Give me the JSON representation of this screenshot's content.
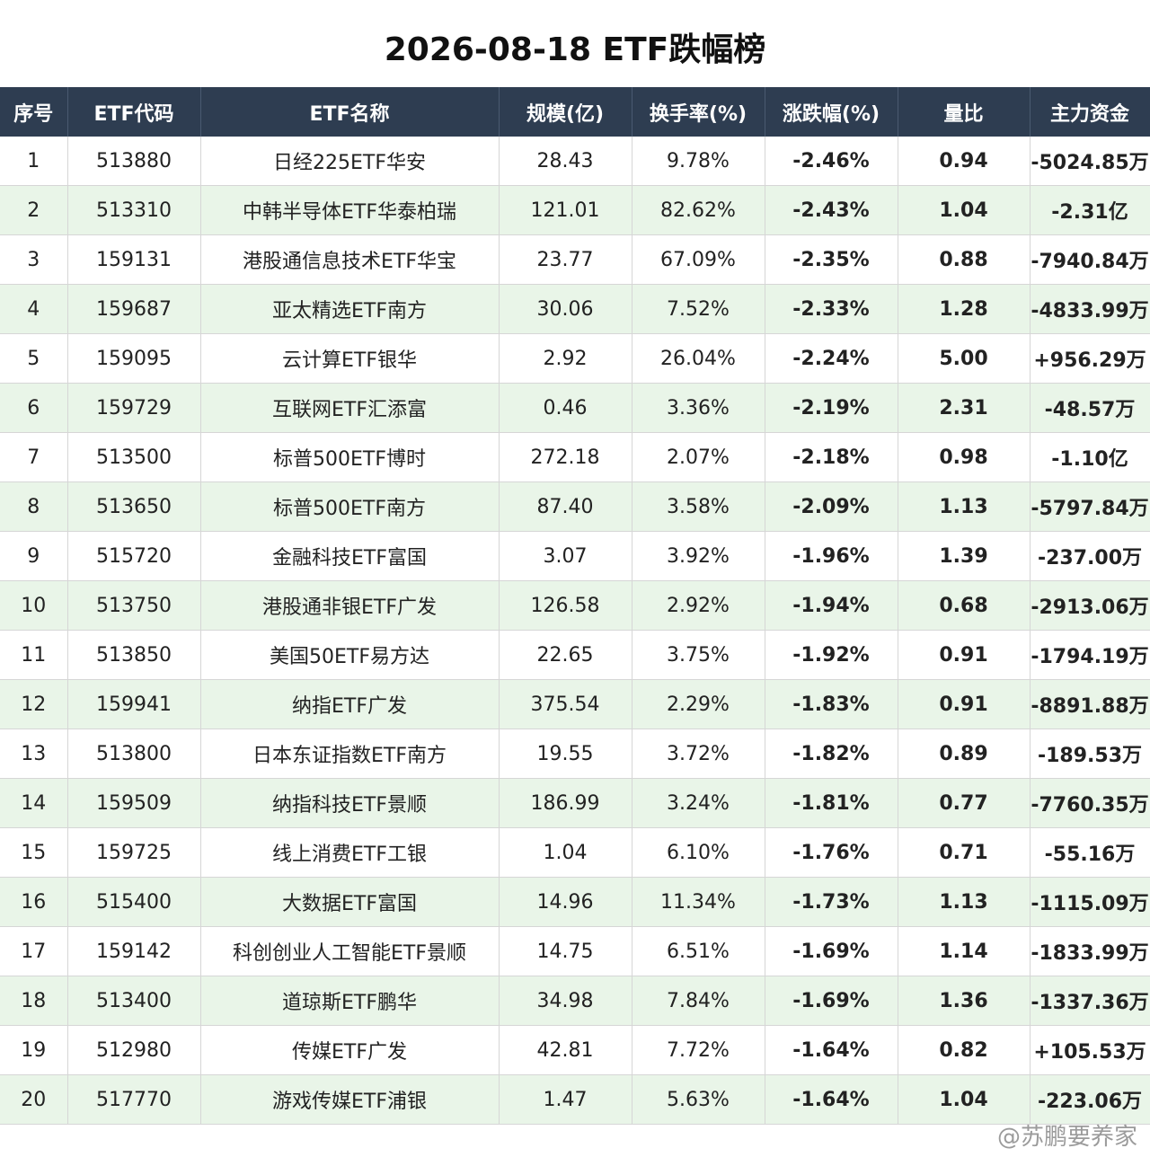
{
  "title": "2026-08-18 ETF跌幅榜",
  "headers": [
    "序号",
    "ETF代码",
    "ETF名称",
    "规模(亿)",
    "换手率(%)",
    "涨跌幅(%)",
    "量比",
    "主力资金"
  ],
  "colors": {
    "header_bg": "#2e3d51",
    "stripe_bg": "#e9f5e8",
    "negative": "#27a04a",
    "positive": "#e04040"
  },
  "rows": [
    {
      "idx": "1",
      "code": "513880",
      "name": "日经225ETF华安",
      "scale": "28.43",
      "turnover": "9.78%",
      "change": "-2.46%",
      "vol_ratio": "0.94",
      "vr_dir": "neg",
      "fund": "-5024.85万",
      "fund_dir": "neg"
    },
    {
      "idx": "2",
      "code": "513310",
      "name": "中韩半导体ETF华泰柏瑞",
      "scale": "121.01",
      "turnover": "82.62%",
      "change": "-2.43%",
      "vol_ratio": "1.04",
      "vr_dir": "pos",
      "fund": "-2.31亿",
      "fund_dir": "neg"
    },
    {
      "idx": "3",
      "code": "159131",
      "name": "港股通信息技术ETF华宝",
      "scale": "23.77",
      "turnover": "67.09%",
      "change": "-2.35%",
      "vol_ratio": "0.88",
      "vr_dir": "neg",
      "fund": "-7940.84万",
      "fund_dir": "neg"
    },
    {
      "idx": "4",
      "code": "159687",
      "name": "亚太精选ETF南方",
      "scale": "30.06",
      "turnover": "7.52%",
      "change": "-2.33%",
      "vol_ratio": "1.28",
      "vr_dir": "pos",
      "fund": "-4833.99万",
      "fund_dir": "neg"
    },
    {
      "idx": "5",
      "code": "159095",
      "name": "云计算ETF银华",
      "scale": "2.92",
      "turnover": "26.04%",
      "change": "-2.24%",
      "vol_ratio": "5.00",
      "vr_dir": "pos",
      "fund": "+956.29万",
      "fund_dir": "pos"
    },
    {
      "idx": "6",
      "code": "159729",
      "name": "互联网ETF汇添富",
      "scale": "0.46",
      "turnover": "3.36%",
      "change": "-2.19%",
      "vol_ratio": "2.31",
      "vr_dir": "pos",
      "fund": "-48.57万",
      "fund_dir": "neg"
    },
    {
      "idx": "7",
      "code": "513500",
      "name": "标普500ETF博时",
      "scale": "272.18",
      "turnover": "2.07%",
      "change": "-2.18%",
      "vol_ratio": "0.98",
      "vr_dir": "neg",
      "fund": "-1.10亿",
      "fund_dir": "neg"
    },
    {
      "idx": "8",
      "code": "513650",
      "name": "标普500ETF南方",
      "scale": "87.40",
      "turnover": "3.58%",
      "change": "-2.09%",
      "vol_ratio": "1.13",
      "vr_dir": "pos",
      "fund": "-5797.84万",
      "fund_dir": "neg"
    },
    {
      "idx": "9",
      "code": "515720",
      "name": "金融科技ETF富国",
      "scale": "3.07",
      "turnover": "3.92%",
      "change": "-1.96%",
      "vol_ratio": "1.39",
      "vr_dir": "pos",
      "fund": "-237.00万",
      "fund_dir": "neg"
    },
    {
      "idx": "10",
      "code": "513750",
      "name": "港股通非银ETF广发",
      "scale": "126.58",
      "turnover": "2.92%",
      "change": "-1.94%",
      "vol_ratio": "0.68",
      "vr_dir": "neg",
      "fund": "-2913.06万",
      "fund_dir": "neg"
    },
    {
      "idx": "11",
      "code": "513850",
      "name": "美国50ETF易方达",
      "scale": "22.65",
      "turnover": "3.75%",
      "change": "-1.92%",
      "vol_ratio": "0.91",
      "vr_dir": "neg",
      "fund": "-1794.19万",
      "fund_dir": "neg"
    },
    {
      "idx": "12",
      "code": "159941",
      "name": "纳指ETF广发",
      "scale": "375.54",
      "turnover": "2.29%",
      "change": "-1.83%",
      "vol_ratio": "0.91",
      "vr_dir": "neg",
      "fund": "-8891.88万",
      "fund_dir": "neg"
    },
    {
      "idx": "13",
      "code": "513800",
      "name": "日本东证指数ETF南方",
      "scale": "19.55",
      "turnover": "3.72%",
      "change": "-1.82%",
      "vol_ratio": "0.89",
      "vr_dir": "neg",
      "fund": "-189.53万",
      "fund_dir": "neg"
    },
    {
      "idx": "14",
      "code": "159509",
      "name": "纳指科技ETF景顺",
      "scale": "186.99",
      "turnover": "3.24%",
      "change": "-1.81%",
      "vol_ratio": "0.77",
      "vr_dir": "neg",
      "fund": "-7760.35万",
      "fund_dir": "neg"
    },
    {
      "idx": "15",
      "code": "159725",
      "name": "线上消费ETF工银",
      "scale": "1.04",
      "turnover": "6.10%",
      "change": "-1.76%",
      "vol_ratio": "0.71",
      "vr_dir": "neg",
      "fund": "-55.16万",
      "fund_dir": "neg"
    },
    {
      "idx": "16",
      "code": "515400",
      "name": "大数据ETF富国",
      "scale": "14.96",
      "turnover": "11.34%",
      "change": "-1.73%",
      "vol_ratio": "1.13",
      "vr_dir": "pos",
      "fund": "-1115.09万",
      "fund_dir": "neg"
    },
    {
      "idx": "17",
      "code": "159142",
      "name": "科创创业人工智能ETF景顺",
      "scale": "14.75",
      "turnover": "6.51%",
      "change": "-1.69%",
      "vol_ratio": "1.14",
      "vr_dir": "pos",
      "fund": "-1833.99万",
      "fund_dir": "neg"
    },
    {
      "idx": "18",
      "code": "513400",
      "name": "道琼斯ETF鹏华",
      "scale": "34.98",
      "turnover": "7.84%",
      "change": "-1.69%",
      "vol_ratio": "1.36",
      "vr_dir": "pos",
      "fund": "-1337.36万",
      "fund_dir": "neg"
    },
    {
      "idx": "19",
      "code": "512980",
      "name": "传媒ETF广发",
      "scale": "42.81",
      "turnover": "7.72%",
      "change": "-1.64%",
      "vol_ratio": "0.82",
      "vr_dir": "neg",
      "fund": "+105.53万",
      "fund_dir": "pos"
    },
    {
      "idx": "20",
      "code": "517770",
      "name": "游戏传媒ETF浦银",
      "scale": "1.47",
      "turnover": "5.63%",
      "change": "-1.64%",
      "vol_ratio": "1.04",
      "vr_dir": "pos",
      "fund": "-223.06万",
      "fund_dir": "neg"
    }
  ],
  "watermark": "@苏鹏要养家"
}
